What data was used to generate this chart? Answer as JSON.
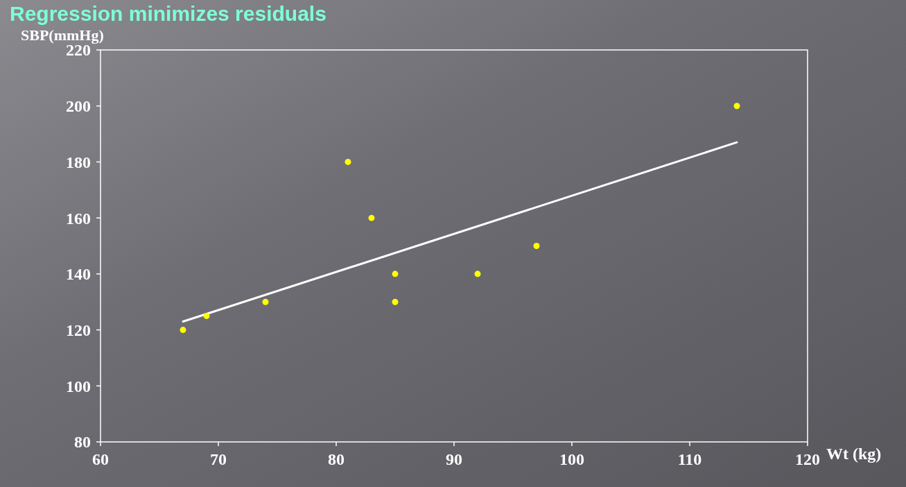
{
  "chart_data": {
    "type": "scatter",
    "title": "Regression minimizes residuals",
    "xlabel": "Wt (kg)",
    "ylabel": "SBP(mmHg)",
    "x": [
      67,
      69,
      74,
      81,
      83,
      85,
      85,
      92,
      97,
      114
    ],
    "series": [
      {
        "color": "#ffff00",
        "marker": "circle",
        "values": [
          120,
          125,
          130,
          180,
          160,
          140,
          130,
          140,
          150,
          200
        ]
      },
      {
        "type": "line",
        "color": "#ffffff",
        "line_style": "solid",
        "x": [
          67,
          114
        ],
        "values": [
          123,
          187
        ]
      }
    ],
    "xlim": [
      60,
      120
    ],
    "ylim": [
      80,
      220
    ],
    "xticks": [
      60,
      70,
      80,
      90,
      100,
      110,
      120
    ],
    "yticks": [
      80,
      100,
      120,
      140,
      160,
      180,
      200,
      220
    ],
    "grid": false
  }
}
